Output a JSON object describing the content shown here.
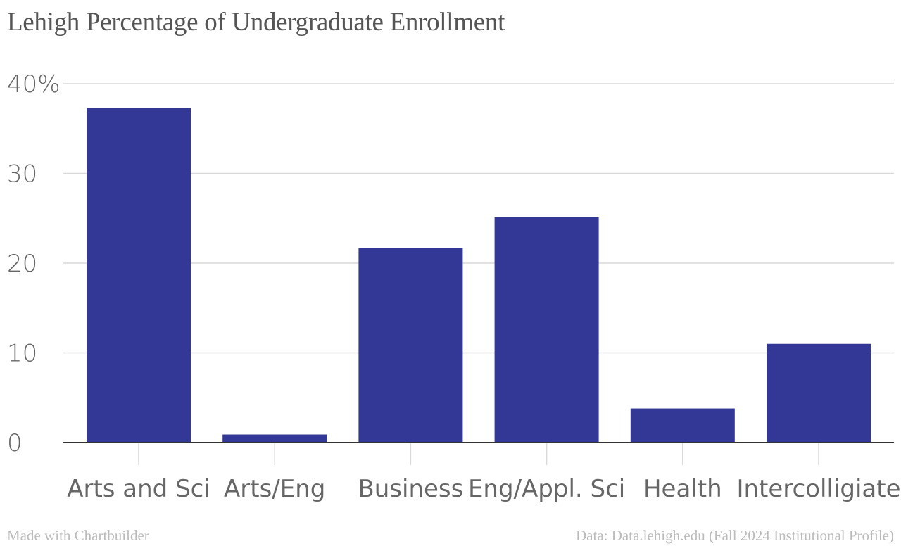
{
  "title": "Lehigh Percentage of Undergraduate Enrollment",
  "footer": {
    "credit": "Made with Chartbuilder",
    "source": "Data: Data.lehigh.edu (Fall 2024 Institutional Profile)"
  },
  "colors": {
    "bar": "#333795",
    "grid": "#d9d9d9",
    "axis": "#333333",
    "tick_text": "#666666",
    "title": "#555555",
    "footer": "#bbbbbb"
  },
  "chart_data": {
    "type": "bar",
    "title": "Lehigh Percentage of Undergraduate Enrollment",
    "xlabel": "",
    "ylabel": "",
    "categories": [
      "Arts and Sci",
      "Arts/Eng",
      "Business",
      "Eng/Appl. Sci",
      "Health",
      "Intercolligiate"
    ],
    "values": [
      37.3,
      0.9,
      21.7,
      25.1,
      3.8,
      11.0
    ],
    "ylim": [
      0,
      40
    ],
    "yticks": [
      0,
      10,
      20,
      30,
      40
    ],
    "ytick_labels": [
      "0",
      "10",
      "20",
      "30",
      "40%"
    ],
    "grid": true,
    "legend": "none"
  }
}
